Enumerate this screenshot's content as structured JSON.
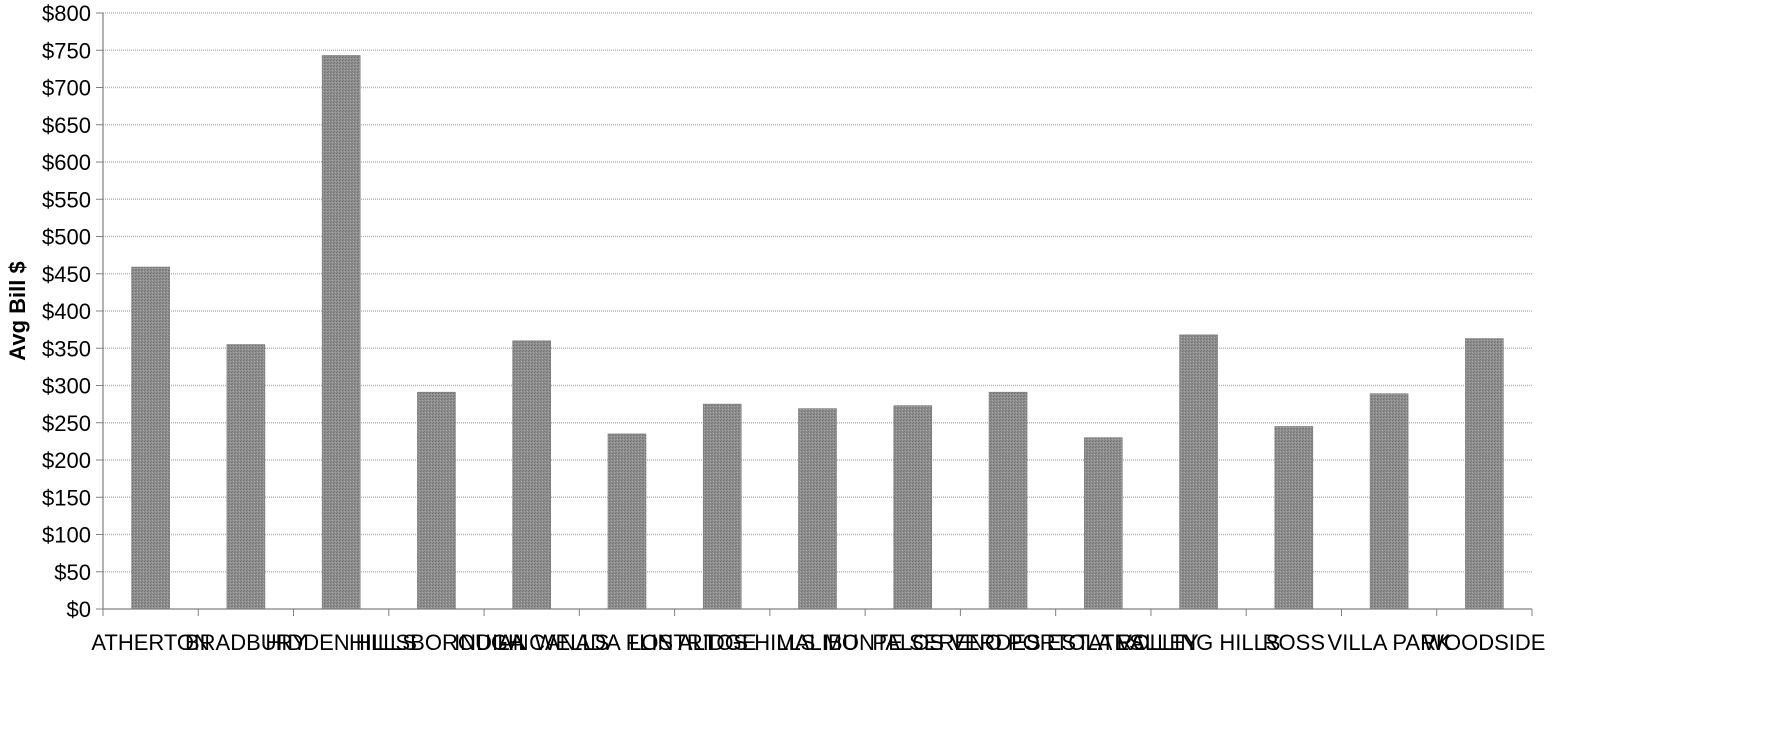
{
  "chart_data": {
    "type": "bar",
    "title": "",
    "xlabel": "",
    "ylabel": "Avg Bill $",
    "ylim": [
      0,
      800
    ],
    "y_tick_step": 50,
    "y_tick_prefix": "$",
    "grid": true,
    "legend": "none",
    "categories": [
      "ATHERTON",
      "BRADBURY",
      "HIDDEN HILLS",
      "HILLSBOROUGH",
      "INDIAN WELLS",
      "LA CANADA FLINTRIDGE",
      "LOS ALTOS HILLS",
      "MALIBU",
      "MONTE SERENO",
      "PALOS VERDES ESTATES",
      "PORTOLA VALLEY",
      "ROLLING HILLS",
      "ROSS",
      "VILLA PARK",
      "WOODSIDE"
    ],
    "values": [
      459,
      355,
      743,
      291,
      360,
      235,
      275,
      269,
      273,
      291,
      230,
      368,
      245,
      289,
      363
    ],
    "colors": {
      "bar": "#8a8a8a",
      "grid": "#b5b5b5",
      "axis": "#808080",
      "text": "#000000"
    }
  }
}
